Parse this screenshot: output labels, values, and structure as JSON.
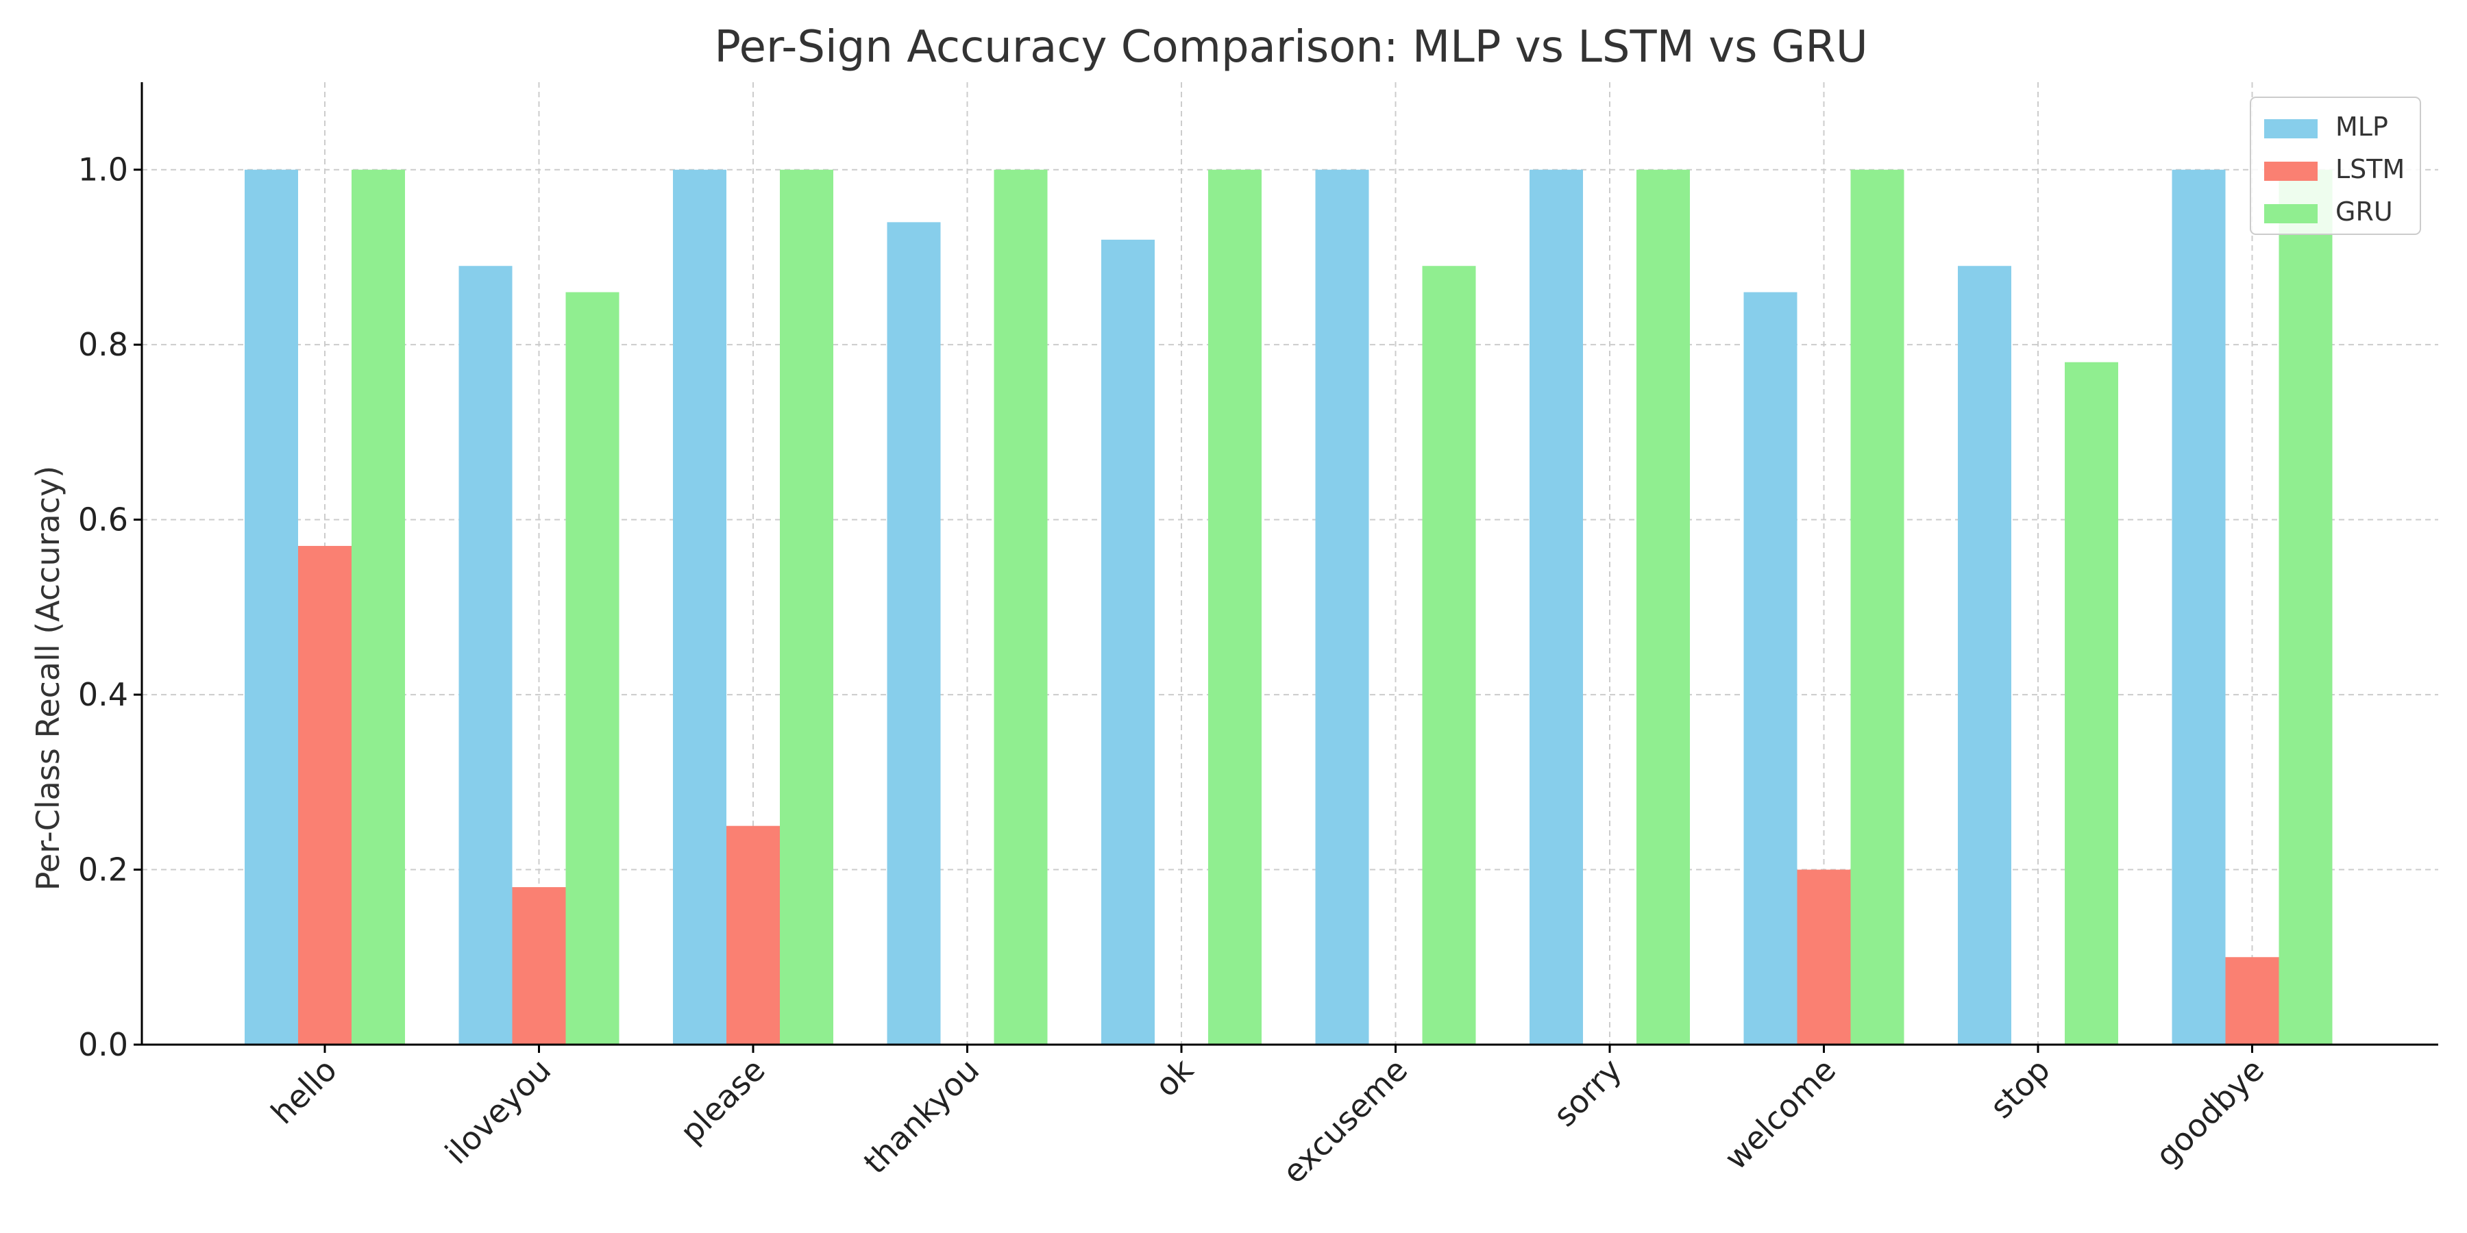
{
  "chart_data": {
    "type": "bar",
    "title": "Per-Sign Accuracy Comparison: MLP vs LSTM vs GRU",
    "xlabel": "",
    "ylabel": "Per-Class Recall (Accuracy)",
    "categories": [
      "hello",
      "iloveyou",
      "please",
      "thankyou",
      "ok",
      "excuseme",
      "sorry",
      "welcome",
      "stop",
      "goodbye"
    ],
    "series": [
      {
        "name": "MLP",
        "color": "#87ceeb",
        "values": [
          1.0,
          0.89,
          1.0,
          0.94,
          0.92,
          1.0,
          1.0,
          0.86,
          0.89,
          1.0
        ]
      },
      {
        "name": "LSTM",
        "color": "#fa8072",
        "values": [
          0.57,
          0.18,
          0.25,
          0.0,
          0.0,
          0.0,
          0.0,
          0.2,
          0.0,
          0.1
        ]
      },
      {
        "name": "GRU",
        "color": "#90ee90",
        "values": [
          1.0,
          0.86,
          1.0,
          1.0,
          1.0,
          0.89,
          1.0,
          1.0,
          0.78,
          1.0
        ]
      }
    ],
    "ylim": [
      0,
      1.1
    ],
    "yticks": [
      "0.0",
      "0.2",
      "0.4",
      "0.6",
      "0.8",
      "1.0"
    ],
    "grid": true,
    "legend_position": "top-right"
  }
}
